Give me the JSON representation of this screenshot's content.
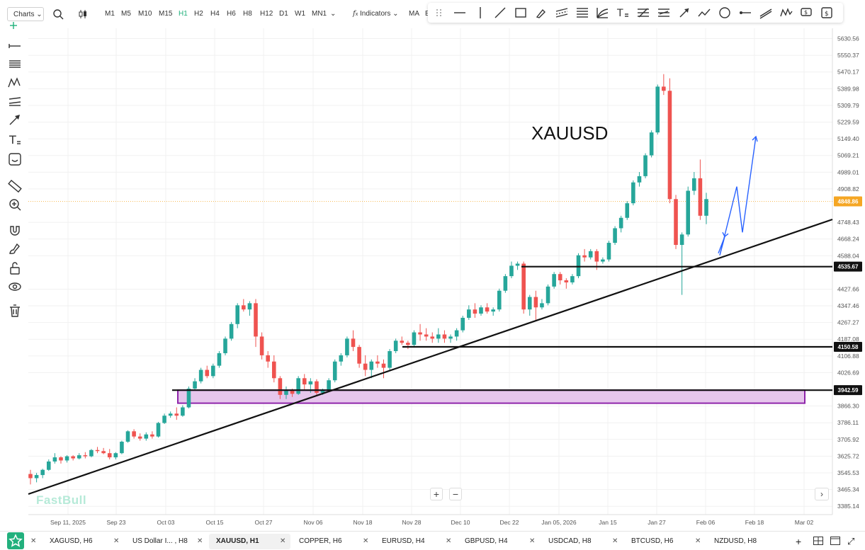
{
  "toolbar": {
    "charts_label": "Charts",
    "timeframes": [
      "M1",
      "M5",
      "M10",
      "M15",
      "H1",
      "H2",
      "H4",
      "H6",
      "H8",
      "H12",
      "D1",
      "W1",
      "MN1"
    ],
    "active_timeframe": "H1",
    "indicators_label": "Indicators",
    "ma_label": "MA",
    "extra_label": "E"
  },
  "colors": {
    "up": "#26a69a",
    "down": "#ef5350",
    "zone_fill": "#e6c6ec",
    "zone_border": "#8e24aa",
    "projection": "#2962ff",
    "price_tag": "#f5a623",
    "accent": "#1fb07a"
  },
  "chart_data": {
    "type": "candlestick",
    "title": "XAUUSD",
    "ylim": [
      3345,
      5680
    ],
    "y_ticks": [
      "5630.56",
      "5550.37",
      "5470.17",
      "5389.98",
      "5309.79",
      "5229.59",
      "5149.40",
      "5069.21",
      "4989.01",
      "4908.82",
      "4748.43",
      "4668.24",
      "4588.04",
      "4427.66",
      "4347.46",
      "4267.27",
      "4187.08",
      "4106.88",
      "4026.69",
      "3866.30",
      "3786.11",
      "3705.92",
      "3625.72",
      "3545.53",
      "3465.34",
      "3385.14"
    ],
    "x_ticks": [
      "Sep 11, 2025",
      "Sep 23",
      "Oct 03",
      "Oct 15",
      "Oct 27",
      "Nov 06",
      "Nov 18",
      "Nov 28",
      "Dec 10",
      "Dec 22",
      "Jan 05, 2026",
      "Jan 15",
      "Jan 27",
      "Feb 06",
      "Feb 18",
      "Mar 02"
    ],
    "candles": [
      [
        3540,
        3560,
        3490,
        3520
      ],
      [
        3520,
        3545,
        3500,
        3535
      ],
      [
        3535,
        3565,
        3520,
        3560
      ],
      [
        3560,
        3610,
        3555,
        3600
      ],
      [
        3600,
        3640,
        3590,
        3620
      ],
      [
        3620,
        3625,
        3590,
        3605
      ],
      [
        3605,
        3630,
        3595,
        3625
      ],
      [
        3625,
        3630,
        3605,
        3615
      ],
      [
        3615,
        3640,
        3610,
        3630
      ],
      [
        3630,
        3645,
        3615,
        3625
      ],
      [
        3625,
        3660,
        3620,
        3655
      ],
      [
        3655,
        3670,
        3640,
        3650
      ],
      [
        3650,
        3665,
        3635,
        3640
      ],
      [
        3640,
        3660,
        3610,
        3620
      ],
      [
        3620,
        3645,
        3610,
        3640
      ],
      [
        3640,
        3700,
        3635,
        3695
      ],
      [
        3695,
        3750,
        3690,
        3745
      ],
      [
        3745,
        3755,
        3710,
        3720
      ],
      [
        3720,
        3735,
        3700,
        3710
      ],
      [
        3710,
        3740,
        3700,
        3730
      ],
      [
        3730,
        3745,
        3710,
        3720
      ],
      [
        3720,
        3790,
        3715,
        3785
      ],
      [
        3785,
        3830,
        3780,
        3820
      ],
      [
        3820,
        3840,
        3810,
        3830
      ],
      [
        3830,
        3860,
        3800,
        3820
      ],
      [
        3820,
        3870,
        3815,
        3860
      ],
      [
        3860,
        3960,
        3855,
        3950
      ],
      [
        3950,
        4000,
        3940,
        3985
      ],
      [
        3985,
        4050,
        3975,
        4040
      ],
      [
        4040,
        4060,
        4000,
        4010
      ],
      [
        4010,
        4070,
        4000,
        4060
      ],
      [
        4060,
        4130,
        4050,
        4120
      ],
      [
        4120,
        4200,
        4110,
        4190
      ],
      [
        4190,
        4270,
        4180,
        4260
      ],
      [
        4260,
        4360,
        4240,
        4350
      ],
      [
        4350,
        4380,
        4320,
        4330
      ],
      [
        4330,
        4370,
        4300,
        4360
      ],
      [
        4360,
        4380,
        4150,
        4200
      ],
      [
        4200,
        4220,
        4090,
        4110
      ],
      [
        4110,
        4130,
        4050,
        4080
      ],
      [
        4080,
        4110,
        3980,
        4000
      ],
      [
        4000,
        4010,
        3900,
        3920
      ],
      [
        3920,
        3960,
        3900,
        3940
      ],
      [
        3940,
        3950,
        3910,
        3925
      ],
      [
        3925,
        4010,
        3920,
        4000
      ],
      [
        4000,
        4020,
        3940,
        3970
      ],
      [
        3970,
        4000,
        3930,
        3985
      ],
      [
        3985,
        3995,
        3920,
        3930
      ],
      [
        3930,
        3950,
        3920,
        3945
      ],
      [
        3945,
        4000,
        3935,
        3990
      ],
      [
        3990,
        4090,
        3980,
        4080
      ],
      [
        4080,
        4120,
        4060,
        4110
      ],
      [
        4110,
        4200,
        4100,
        4190
      ],
      [
        4190,
        4230,
        4130,
        4150
      ],
      [
        4150,
        4160,
        4050,
        4070
      ],
      [
        4070,
        4110,
        4010,
        4040
      ],
      [
        4040,
        4090,
        4000,
        4080
      ],
      [
        4080,
        4110,
        4050,
        4070
      ],
      [
        4070,
        4090,
        4000,
        4050
      ],
      [
        4050,
        4140,
        4040,
        4130
      ],
      [
        4130,
        4190,
        4120,
        4180
      ],
      [
        4180,
        4200,
        4160,
        4170
      ],
      [
        4170,
        4180,
        4140,
        4160
      ],
      [
        4160,
        4230,
        4150,
        4220
      ],
      [
        4220,
        4260,
        4180,
        4210
      ],
      [
        4210,
        4240,
        4180,
        4200
      ],
      [
        4200,
        4220,
        4170,
        4190
      ],
      [
        4190,
        4240,
        4170,
        4210
      ],
      [
        4210,
        4230,
        4170,
        4190
      ],
      [
        4190,
        4210,
        4170,
        4200
      ],
      [
        4200,
        4240,
        4180,
        4230
      ],
      [
        4230,
        4300,
        4220,
        4290
      ],
      [
        4290,
        4350,
        4280,
        4330
      ],
      [
        4330,
        4360,
        4290,
        4310
      ],
      [
        4310,
        4350,
        4300,
        4340
      ],
      [
        4340,
        4360,
        4310,
        4320
      ],
      [
        4320,
        4340,
        4300,
        4330
      ],
      [
        4330,
        4430,
        4320,
        4420
      ],
      [
        4420,
        4500,
        4410,
        4490
      ],
      [
        4490,
        4560,
        4480,
        4540
      ],
      [
        4540,
        4560,
        4520,
        4550
      ],
      [
        4550,
        4560,
        4310,
        4330
      ],
      [
        4330,
        4400,
        4300,
        4390
      ],
      [
        4390,
        4420,
        4280,
        4340
      ],
      [
        4340,
        4380,
        4330,
        4360
      ],
      [
        4360,
        4450,
        4350,
        4440
      ],
      [
        4440,
        4510,
        4430,
        4500
      ],
      [
        4500,
        4510,
        4450,
        4470
      ],
      [
        4470,
        4480,
        4430,
        4460
      ],
      [
        4460,
        4500,
        4450,
        4490
      ],
      [
        4490,
        4600,
        4480,
        4590
      ],
      [
        4590,
        4620,
        4560,
        4580
      ],
      [
        4580,
        4620,
        4570,
        4610
      ],
      [
        4610,
        4620,
        4520,
        4560
      ],
      [
        4560,
        4580,
        4550,
        4570
      ],
      [
        4570,
        4660,
        4560,
        4650
      ],
      [
        4650,
        4730,
        4640,
        4720
      ],
      [
        4720,
        4780,
        4700,
        4770
      ],
      [
        4770,
        4850,
        4760,
        4840
      ],
      [
        4840,
        4950,
        4830,
        4940
      ],
      [
        4940,
        4990,
        4920,
        4970
      ],
      [
        4970,
        5080,
        4960,
        5070
      ],
      [
        5070,
        5190,
        5060,
        5180
      ],
      [
        5180,
        5410,
        5170,
        5400
      ],
      [
        5400,
        5460,
        5360,
        5380
      ],
      [
        5380,
        5440,
        4840,
        4860
      ],
      [
        4860,
        4880,
        4620,
        4640
      ],
      [
        4640,
        4700,
        4400,
        4690
      ],
      [
        4690,
        4920,
        4680,
        4900
      ],
      [
        4900,
        4990,
        4880,
        4960
      ],
      [
        4960,
        5050,
        4760,
        4780
      ],
      [
        4780,
        4890,
        4740,
        4860
      ]
    ],
    "lines": [
      {
        "label": "4535.67",
        "value": 4535.67
      },
      {
        "label": "4150.58",
        "value": 4150.58
      },
      {
        "label": "3942.59",
        "value": 3942.59
      }
    ],
    "zone": {
      "top": 3942.59,
      "bottom": 3880
    },
    "last_price": "4848.86",
    "projection_prices": [
      4600,
      4680,
      4590,
      4920,
      4700,
      5160
    ]
  },
  "watermark": "FastBull",
  "bottom_tabs": [
    {
      "label": "XAGUSD, H6",
      "active": false
    },
    {
      "label": "US Dollar I... , H8",
      "active": false
    },
    {
      "label": "XAUUSD, H1",
      "active": true
    },
    {
      "label": "COPPER, H6",
      "active": false
    },
    {
      "label": "EURUSD, H4",
      "active": false
    },
    {
      "label": "GBPUSD, H4",
      "active": false
    },
    {
      "label": "USDCAD, H8",
      "active": false
    },
    {
      "label": "BTCUSD, H6",
      "active": false
    },
    {
      "label": "NZDUSD, H8",
      "active": false
    }
  ],
  "icons": {
    "left": [
      "crosshair-icon",
      "horizontal-line-icon",
      "fib-icon",
      "pattern-icon",
      "channel-icon",
      "arrow-icon",
      "text-icon",
      "emoji-icon",
      "ruler-icon",
      "zoom-icon",
      "magnet-icon",
      "brush-icon",
      "lock-icon",
      "eye-icon",
      "trash-icon"
    ],
    "draw": [
      "drag-handle-icon",
      "horizontal-segment-icon",
      "vertical-line-icon",
      "trendline-icon",
      "rectangle-icon",
      "brush-icon",
      "parallel-channel-icon",
      "fib-retracement-icon",
      "fib-fan-icon",
      "text-tool-icon",
      "pitchfork-icon",
      "gann-icon",
      "arrow-tool-icon",
      "polyline-icon",
      "circle-icon",
      "ray-icon",
      "extended-line-icon",
      "xabcd-icon",
      "price-label-icon",
      "money-icon"
    ]
  }
}
